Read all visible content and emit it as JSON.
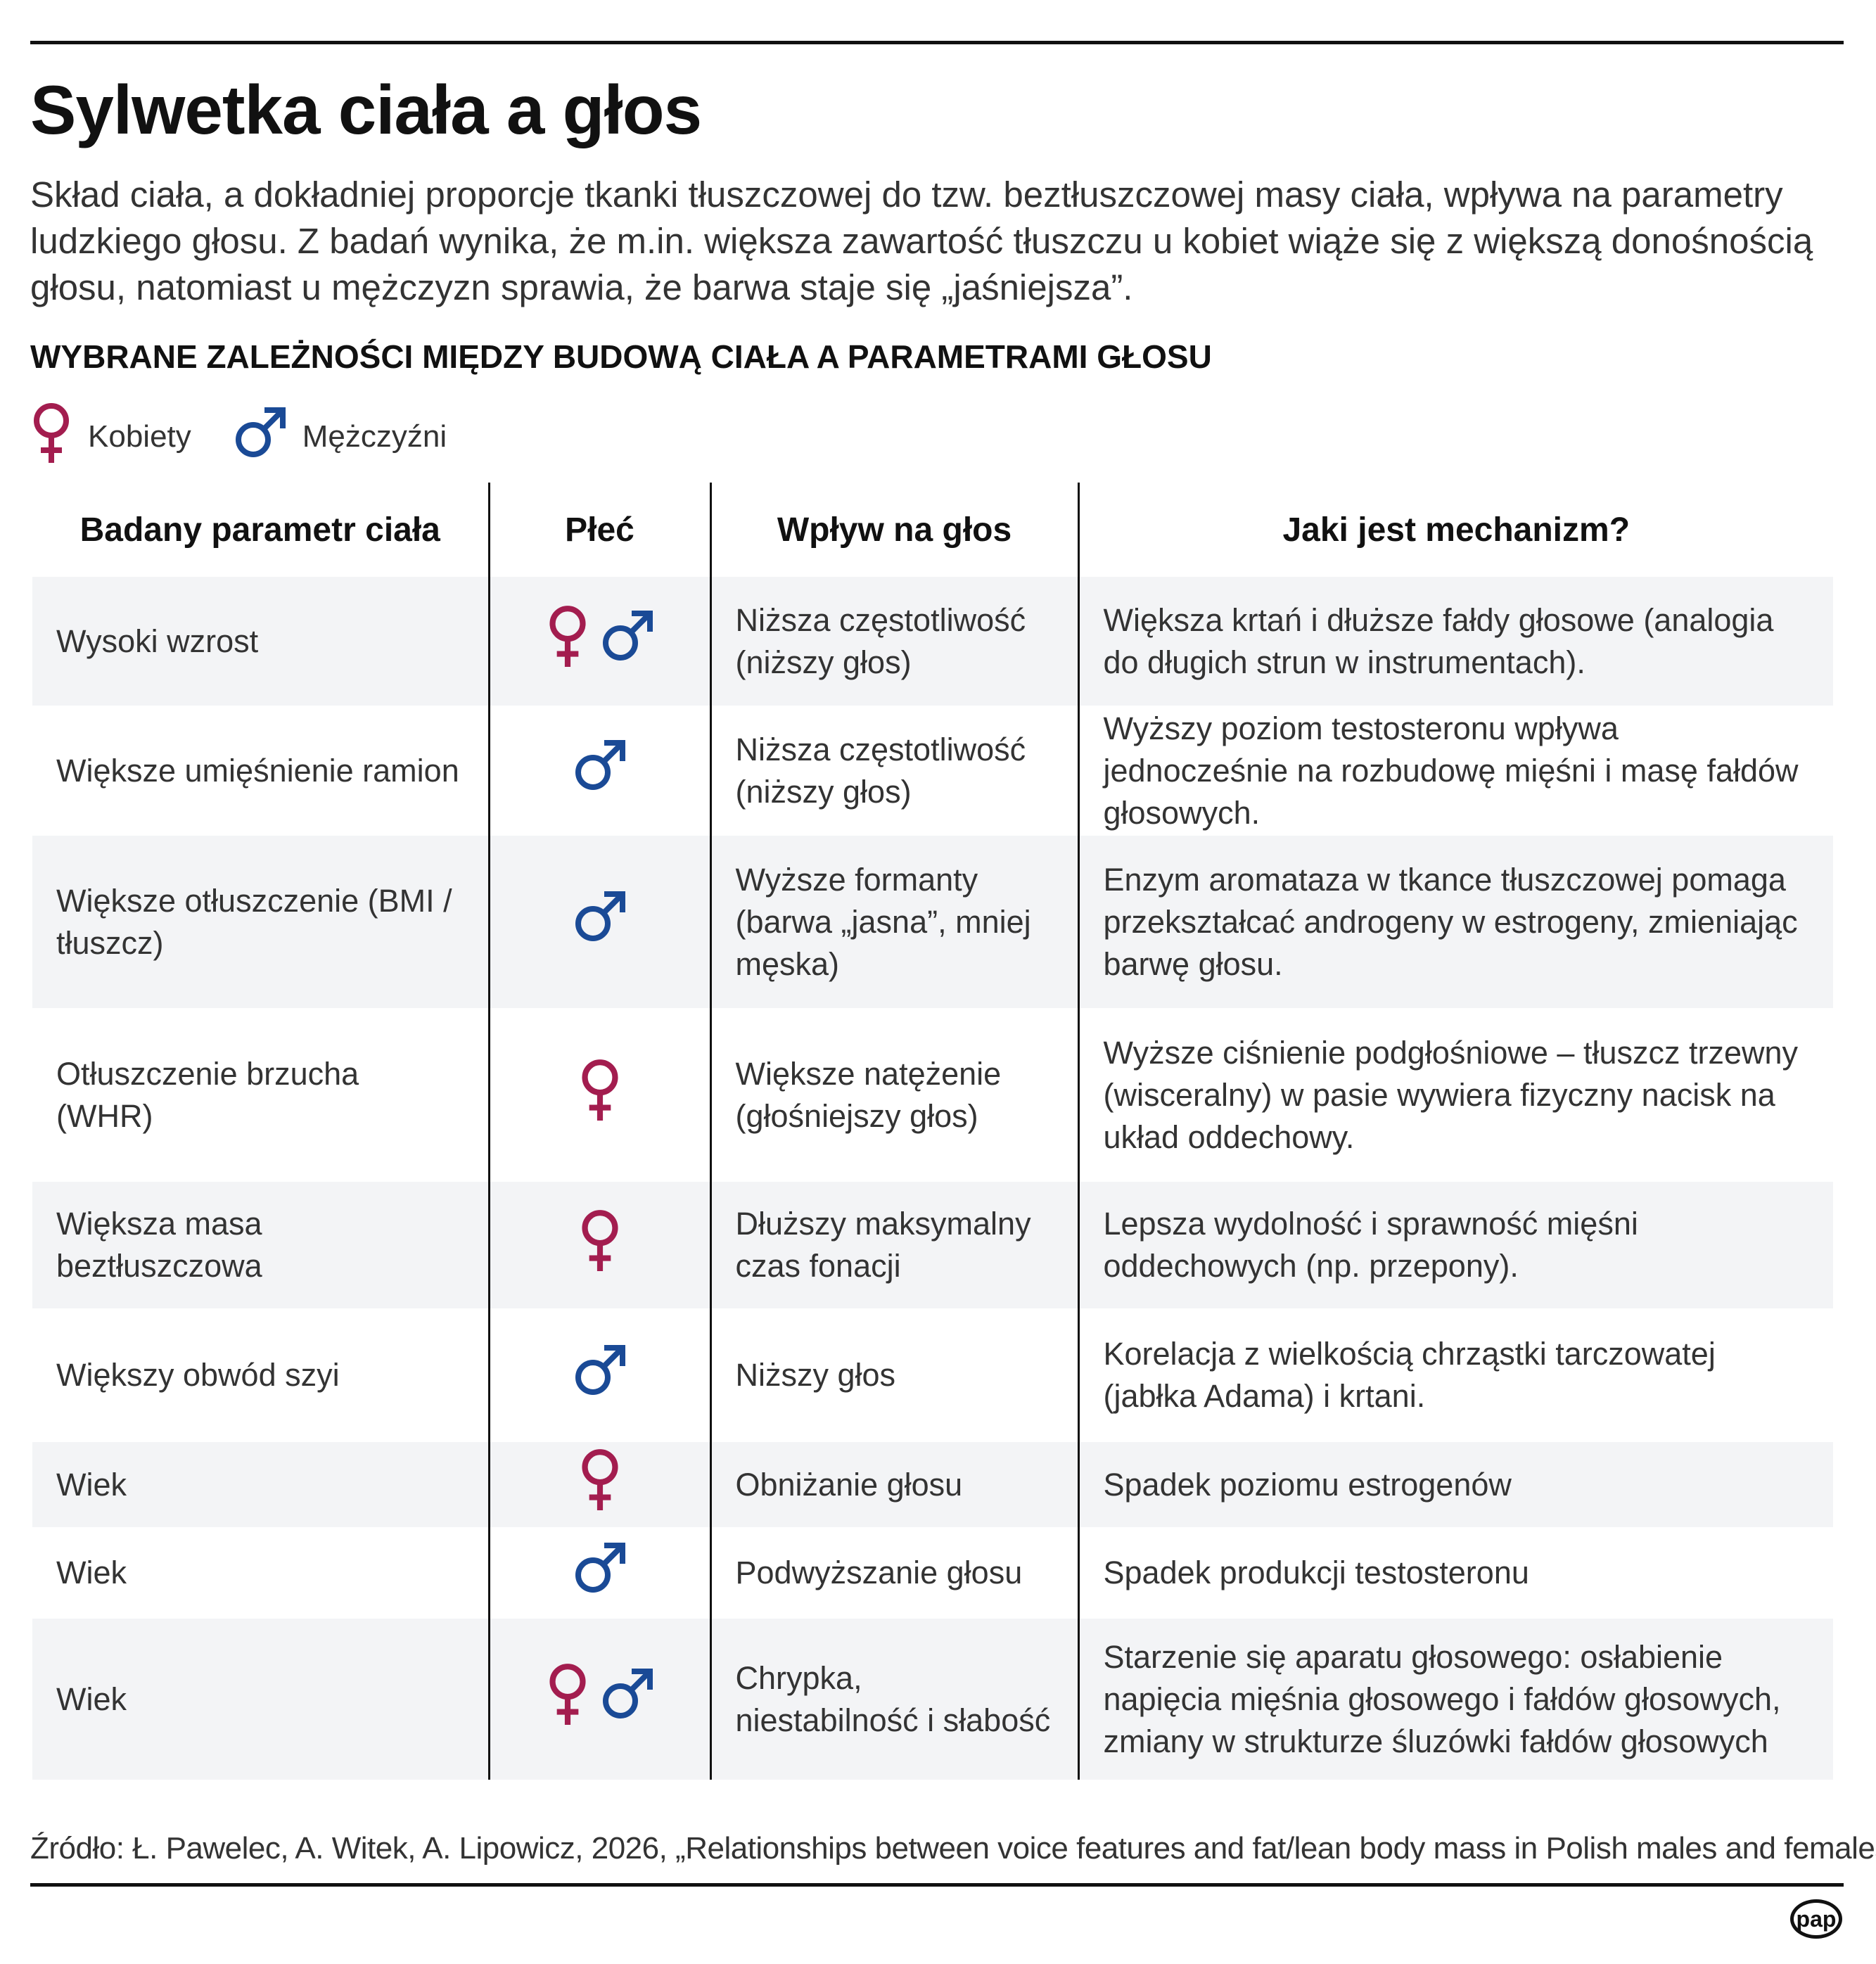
{
  "title": "Sylwetka ciała a głos",
  "lead": "Skład ciała, a dokładniej proporcje tkanki tłuszczowej do tzw. beztłuszczowej masy ciała, wpływa na parametry ludzkiego głosu. Z badań wynika, że m.in. większa zawartość tłuszczu u kobiet wiąże się z większą donośnością głosu, natomiast u mężczyzn sprawia, że barwa staje się „jaśniejsza”.",
  "subhead": "WYBRANE ZALEŻNOŚCI MIĘDZY BUDOWĄ CIAŁA A PARAMETRAMI GŁOSU",
  "colors": {
    "female": "#a31d4f",
    "male": "#1a4a96",
    "shade": "#f3f4f6"
  },
  "legend": {
    "female": "Kobiety",
    "male": "Mężczyźni"
  },
  "table": {
    "headers": [
      "Badany parametr ciała",
      "Płeć",
      "Wpływ na głos",
      "Jaki jest mechanizm?"
    ],
    "rows": [
      {
        "param": "Wysoki wzrost",
        "sex": [
          "female",
          "male"
        ],
        "effect": "Niższa częstotliwość (niższy głos)",
        "mechanism": "Większa krtań i dłuższe fałdy głosowe (analogia do długich strun w instrumentach)."
      },
      {
        "param": "Większe umięśnienie ramion",
        "sex": [
          "male"
        ],
        "effect": "Niższa częstotliwość (niższy głos)",
        "mechanism": "Wyższy poziom testosteronu wpływa jednocześnie na rozbudowę mięśni i masę fałdów głosowych."
      },
      {
        "param": "Większe otłuszczenie (BMI / tłuszcz)",
        "sex": [
          "male"
        ],
        "effect": "Wyższe formanty (barwa „jasna”, mniej męska)",
        "mechanism": "Enzym aromataza w tkance tłuszczowej pomaga przekształcać androgeny w estrogeny, zmieniając barwę głosu."
      },
      {
        "param": "Otłuszczenie brzucha (WHR)",
        "sex": [
          "female"
        ],
        "effect": "Większe natężenie (głośniejszy głos)",
        "mechanism": "Wyższe ciśnienie podgłośniowe – tłuszcz trzewny (wisceralny) w pasie wywiera fizyczny nacisk na układ oddechowy."
      },
      {
        "param": "Większa masa beztłuszczowa",
        "sex": [
          "female"
        ],
        "effect": "Dłuższy maksymalny czas fonacji",
        "mechanism": "Lepsza wydolność i sprawność mięśni oddechowych (np. przepony)."
      },
      {
        "param": "Większy obwód szyi",
        "sex": [
          "male"
        ],
        "effect": "Niższy głos",
        "mechanism": "Korelacja z wielkością chrząstki tarczowatej (jabłka Adama) i krtani."
      },
      {
        "param": "Wiek",
        "sex": [
          "female"
        ],
        "effect": "Obniżanie głosu",
        "mechanism": "Spadek poziomu estrogenów"
      },
      {
        "param": "Wiek",
        "sex": [
          "male"
        ],
        "effect": "Podwyższanie głosu",
        "mechanism": "Spadek produkcji testosteronu"
      },
      {
        "param": "Wiek",
        "sex": [
          "female",
          "male"
        ],
        "effect": "Chrypka, niestabilność i słabość",
        "mechanism": "Starzenie się aparatu głosowego: osłabienie napięcia mięśnia głosowego i fałdów głosowych, zmiany w strukturze śluzówki fałdów głosowych"
      }
    ]
  },
  "source": "Źródło: Ł. Pawelec, A. Witek, A. Lipowicz, 2026, „Relationships between voice features and fat/lean body mass in Polish males and females”",
  "logo": "pap"
}
